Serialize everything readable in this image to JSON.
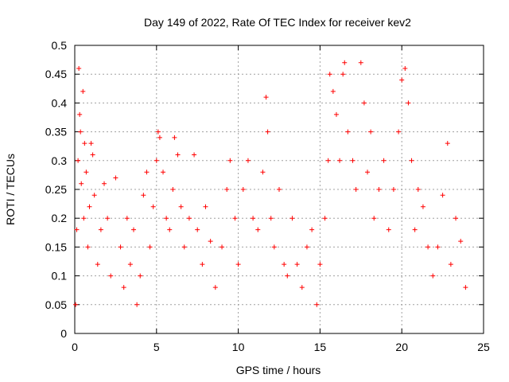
{
  "chart_data": {
    "type": "scatter",
    "title": "Day 149 of 2022, Rate Of TEC Index for receiver kev2",
    "xlabel": "GPS time / hours",
    "ylabel": "ROTI / TECUs",
    "xlim": [
      0,
      25
    ],
    "ylim": [
      0,
      0.5
    ],
    "xticks": [
      0,
      5,
      10,
      15,
      20,
      25
    ],
    "yticks": [
      0,
      0.05,
      0.1,
      0.15,
      0.2,
      0.25,
      0.3,
      0.35,
      0.4,
      0.45,
      0.5
    ],
    "xtick_labels": [
      "0",
      "5",
      "10",
      "15",
      "20",
      "25"
    ],
    "ytick_labels": [
      "0",
      "0.05",
      "0.1",
      "0.15",
      "0.2",
      "0.25",
      "0.3",
      "0.35",
      "0.4",
      "0.45",
      "0.5"
    ],
    "grid": true,
    "marker": "+",
    "marker_color": "#ff0000",
    "series": [
      {
        "points": [
          [
            0.05,
            0.05
          ],
          [
            0.12,
            0.18
          ],
          [
            0.2,
            0.3
          ],
          [
            0.25,
            0.46
          ],
          [
            0.3,
            0.38
          ],
          [
            0.35,
            0.35
          ],
          [
            0.4,
            0.26
          ],
          [
            0.5,
            0.42
          ],
          [
            0.55,
            0.2
          ],
          [
            0.6,
            0.33
          ],
          [
            0.7,
            0.28
          ],
          [
            0.8,
            0.15
          ],
          [
            0.9,
            0.22
          ],
          [
            1.0,
            0.33
          ],
          [
            1.1,
            0.31
          ],
          [
            1.2,
            0.24
          ],
          [
            1.4,
            0.12
          ],
          [
            1.6,
            0.18
          ],
          [
            1.8,
            0.26
          ],
          [
            2.0,
            0.2
          ],
          [
            2.2,
            0.1
          ],
          [
            2.5,
            0.27
          ],
          [
            2.8,
            0.15
          ],
          [
            3.0,
            0.08
          ],
          [
            3.2,
            0.2
          ],
          [
            3.4,
            0.12
          ],
          [
            3.6,
            0.18
          ],
          [
            3.8,
            0.05
          ],
          [
            4.0,
            0.1
          ],
          [
            4.2,
            0.24
          ],
          [
            4.4,
            0.28
          ],
          [
            4.6,
            0.15
          ],
          [
            4.8,
            0.22
          ],
          [
            5.0,
            0.3
          ],
          [
            5.1,
            0.35
          ],
          [
            5.2,
            0.34
          ],
          [
            5.4,
            0.28
          ],
          [
            5.6,
            0.2
          ],
          [
            5.8,
            0.18
          ],
          [
            6.0,
            0.25
          ],
          [
            6.1,
            0.34
          ],
          [
            6.3,
            0.31
          ],
          [
            6.5,
            0.22
          ],
          [
            6.7,
            0.15
          ],
          [
            7.0,
            0.2
          ],
          [
            7.3,
            0.31
          ],
          [
            7.5,
            0.18
          ],
          [
            7.8,
            0.12
          ],
          [
            8.0,
            0.22
          ],
          [
            8.3,
            0.16
          ],
          [
            8.6,
            0.08
          ],
          [
            9.0,
            0.15
          ],
          [
            9.3,
            0.25
          ],
          [
            9.5,
            0.3
          ],
          [
            9.8,
            0.2
          ],
          [
            10.0,
            0.12
          ],
          [
            10.3,
            0.25
          ],
          [
            10.6,
            0.3
          ],
          [
            10.9,
            0.2
          ],
          [
            11.2,
            0.18
          ],
          [
            11.5,
            0.28
          ],
          [
            11.7,
            0.41
          ],
          [
            11.8,
            0.35
          ],
          [
            12.0,
            0.2
          ],
          [
            12.2,
            0.15
          ],
          [
            12.5,
            0.25
          ],
          [
            12.8,
            0.12
          ],
          [
            13.0,
            0.1
          ],
          [
            13.3,
            0.2
          ],
          [
            13.6,
            0.12
          ],
          [
            13.9,
            0.08
          ],
          [
            14.2,
            0.15
          ],
          [
            14.5,
            0.18
          ],
          [
            14.8,
            0.05
          ],
          [
            15.0,
            0.12
          ],
          [
            15.3,
            0.2
          ],
          [
            15.5,
            0.3
          ],
          [
            15.6,
            0.45
          ],
          [
            15.8,
            0.42
          ],
          [
            16.0,
            0.38
          ],
          [
            16.2,
            0.3
          ],
          [
            16.4,
            0.45
          ],
          [
            16.5,
            0.47
          ],
          [
            16.7,
            0.35
          ],
          [
            17.0,
            0.3
          ],
          [
            17.2,
            0.25
          ],
          [
            17.5,
            0.47
          ],
          [
            17.7,
            0.4
          ],
          [
            17.9,
            0.28
          ],
          [
            18.1,
            0.35
          ],
          [
            18.3,
            0.2
          ],
          [
            18.6,
            0.25
          ],
          [
            18.9,
            0.3
          ],
          [
            19.2,
            0.18
          ],
          [
            19.5,
            0.25
          ],
          [
            19.8,
            0.35
          ],
          [
            20.0,
            0.44
          ],
          [
            20.2,
            0.46
          ],
          [
            20.4,
            0.4
          ],
          [
            20.6,
            0.3
          ],
          [
            20.8,
            0.18
          ],
          [
            21.0,
            0.25
          ],
          [
            21.3,
            0.22
          ],
          [
            21.6,
            0.15
          ],
          [
            21.9,
            0.1
          ],
          [
            22.2,
            0.15
          ],
          [
            22.5,
            0.24
          ],
          [
            22.8,
            0.33
          ],
          [
            23.0,
            0.12
          ],
          [
            23.3,
            0.2
          ],
          [
            23.6,
            0.16
          ],
          [
            23.9,
            0.08
          ]
        ]
      }
    ]
  }
}
